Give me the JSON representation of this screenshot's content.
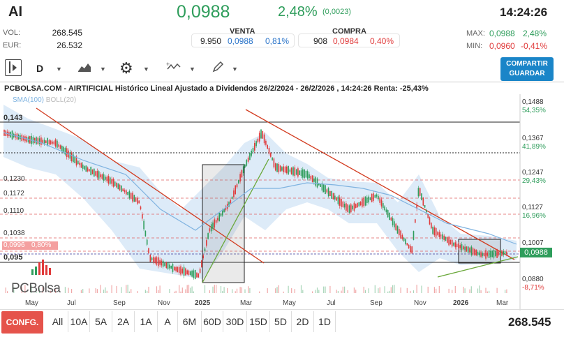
{
  "header": {
    "ticker": "AI",
    "price": "0,0988",
    "change_pct": "2,48%",
    "change_abs": "(0,0023)",
    "time": "14:24:26"
  },
  "stats": {
    "vol_label": "VOL:",
    "vol_value": "268.545",
    "eur_label": "EUR:",
    "eur_value": "26.532",
    "max_label": "MAX:",
    "max_value": "0,0988",
    "max_pct": "2,48%",
    "min_label": "MIN:",
    "min_value": "0,0960",
    "min_pct": "-0,41%"
  },
  "venta": {
    "title": "VENTA",
    "qty": "9.950",
    "price": "0,0988",
    "pct": "0,81%"
  },
  "compra": {
    "title": "COMPRA",
    "qty": "908",
    "price": "0,0984",
    "pct": "0,40%"
  },
  "toolbar": {
    "interval": "D",
    "share_line1": "COMPARTIR",
    "share_line2": "GUARDAR",
    "icons": [
      "sidebar-toggle-icon",
      "area-chart-icon",
      "gear-icon",
      "indicators-icon",
      "pencil-icon"
    ]
  },
  "chart_title": "PCBOLSA.COM - AIRTIFICIAL Histórico Lineal Ajustado a Dividendos 26/2/2024 - 26/2/2026 , 14:24:26 Renta: -25,43%",
  "legend": {
    "sma": "SMA(100)",
    "boll": "BOLL(20)"
  },
  "logo": "PCBolsa",
  "chart_data": {
    "type": "candlestick",
    "x_labels": [
      "May",
      "Jul",
      "Sep",
      "Nov",
      "2025",
      "Mar",
      "May",
      "Jul",
      "Sep",
      "Nov",
      "2026",
      "Mar"
    ],
    "left_levels": [
      "0,143",
      "0,1230",
      "0,1172",
      "0,1110",
      "0,1038",
      "0,095"
    ],
    "left_price_tag": "0,0996",
    "left_price_tag_pct": "0,80%",
    "right_levels": [
      {
        "value": "0,1488",
        "pct": "54,35%"
      },
      {
        "value": "0,1367",
        "pct": "41,89%"
      },
      {
        "value": "0,1247",
        "pct": "29,43%"
      },
      {
        "value": "0,1127",
        "pct": "16,96%"
      },
      {
        "value": "0,1007",
        "pct": ""
      },
      {
        "value": "0,0880",
        "pct": "-8,71%"
      }
    ],
    "last_price_tag": "0,0988",
    "ylim": [
      0.086,
      0.151
    ]
  },
  "ranges": [
    "All",
    "10A",
    "5A",
    "2A",
    "1A",
    "A",
    "6M",
    "60D",
    "30D",
    "15D",
    "5D",
    "2D",
    "1D"
  ],
  "config_label": "CONFG.",
  "volume_total": "268.545"
}
